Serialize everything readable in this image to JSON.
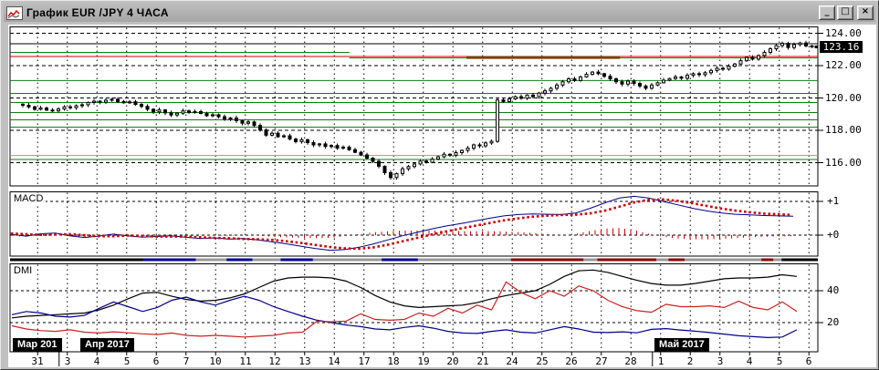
{
  "window": {
    "title": "График EUR /JPY  4 ЧАСА",
    "controls": {
      "minimize": "_",
      "maximize": "□",
      "close": "×"
    }
  },
  "colors": {
    "green_level": "#0f7d0f",
    "red_level": "#cc0000",
    "brown_level": "#7a4010",
    "macd_line": "#00008b",
    "signal_line": "#cc0000",
    "adx_line": "#000000",
    "plus_di": "#00008b",
    "minus_di": "#cc2222",
    "badge_bg": "#000000",
    "pink_level": "#dd8888"
  },
  "panels": {
    "price": {
      "axis": [
        {
          "label": "124.00",
          "value": 124
        },
        {
          "label": "122.00",
          "value": 122
        },
        {
          "label": "120.00",
          "value": 120
        },
        {
          "label": "118.00",
          "value": 118
        },
        {
          "label": "116.00",
          "value": 116
        }
      ],
      "current_price_label": "123.16",
      "current_price": 123.16
    },
    "macd": {
      "title": "MACD",
      "axis": [
        {
          "label": "+1",
          "value": 1
        },
        {
          "label": "+0",
          "value": 0
        }
      ]
    },
    "dmi": {
      "title": "DMI",
      "axis": [
        {
          "label": "40",
          "value": 40
        },
        {
          "label": "20",
          "value": 20
        }
      ]
    }
  },
  "x_axis": {
    "day_labels": [
      "31",
      "3",
      "4",
      "5",
      "6",
      "7",
      "10",
      "11",
      "12",
      "13",
      "14",
      "17",
      "18",
      "19",
      "20",
      "21",
      "24",
      "25",
      "26",
      "27",
      "28",
      "1",
      "2",
      "3",
      "4",
      "5",
      "6"
    ],
    "months": [
      {
        "text": "Мар 201"
      },
      {
        "text": "Апр 2017"
      },
      {
        "text": "Май 2017"
      }
    ]
  },
  "chart_data": [
    {
      "type": "candlestick",
      "title": "EUR/JPY 4-hour price",
      "ylim": [
        114.6,
        124.4
      ],
      "gridlines": [
        124,
        122,
        120,
        118,
        116
      ],
      "bars_per_day": 5,
      "closes": [
        119.55,
        119.45,
        119.3,
        119.38,
        119.25,
        119.2,
        119.32,
        119.45,
        119.4,
        119.52,
        119.58,
        119.72,
        119.8,
        119.74,
        119.86,
        119.92,
        119.78,
        119.7,
        119.76,
        119.6,
        119.48,
        119.3,
        119.14,
        119.26,
        119.08,
        118.95,
        119.06,
        119.2,
        119.1,
        119.16,
        119.04,
        118.9,
        118.96,
        118.84,
        118.7,
        118.76,
        118.6,
        118.44,
        118.52,
        118.3,
        118.02,
        117.7,
        117.82,
        117.6,
        117.66,
        117.46,
        117.3,
        117.42,
        117.24,
        117.1,
        117.16,
        117.0,
        117.06,
        116.9,
        116.96,
        116.8,
        116.64,
        116.48,
        116.28,
        116.08,
        115.78,
        115.38,
        115.08,
        115.32,
        115.62,
        115.76,
        115.92,
        116.1,
        116.02,
        116.22,
        116.36,
        116.52,
        116.46,
        116.62,
        116.76,
        116.9,
        117.1,
        117.04,
        117.22,
        117.32,
        119.88,
        119.78,
        119.94,
        120.08,
        119.98,
        120.18,
        120.08,
        120.3,
        120.44,
        120.6,
        120.8,
        121.0,
        121.18,
        121.08,
        121.3,
        121.46,
        121.6,
        121.5,
        121.34,
        121.18,
        121.0,
        120.86,
        121.04,
        120.9,
        120.74,
        120.6,
        120.8,
        120.94,
        121.1,
        121.2,
        121.3,
        121.22,
        121.4,
        121.5,
        121.44,
        121.56,
        121.7,
        121.84,
        121.78,
        121.96,
        122.1,
        122.3,
        122.5,
        122.4,
        122.62,
        122.82,
        123.04,
        123.24,
        123.38,
        123.12,
        123.3,
        123.4,
        123.22,
        123.16
      ],
      "levels": [
        {
          "price": 123.35,
          "color": "#000000",
          "width": 1,
          "from": 0,
          "to": 1
        },
        {
          "price": 122.82,
          "color": "#0f7d0f",
          "width": 1,
          "from": 0,
          "to": 0.42
        },
        {
          "price": 122.48,
          "color": "#0f7d0f",
          "width": 1,
          "from": 0.42,
          "to": 1
        },
        {
          "price": 122.56,
          "color": "#cc0000",
          "width": 1,
          "from": 0,
          "to": 1
        },
        {
          "price": 122.5,
          "color": "#7a4010",
          "width": 3,
          "from": 0.565,
          "to": 0.755
        },
        {
          "price": 121.08,
          "color": "#0f7d0f",
          "width": 1,
          "from": 0,
          "to": 1
        },
        {
          "price": 120.28,
          "color": "#0f7d0f",
          "width": 1,
          "from": 0,
          "to": 1
        },
        {
          "price": 119.72,
          "color": "#0f7d0f",
          "width": 1,
          "from": 0,
          "to": 1
        },
        {
          "price": 119.1,
          "color": "#0f7d0f",
          "width": 1,
          "from": 0,
          "to": 1
        },
        {
          "price": 118.65,
          "color": "#0f7d0f",
          "width": 1,
          "from": 0,
          "to": 1
        },
        {
          "price": 118.2,
          "color": "#0f7d0f",
          "width": 1,
          "from": 0,
          "to": 1
        },
        {
          "price": 116.45,
          "color": "#dd8888",
          "width": 1,
          "from": 0,
          "to": 1
        },
        {
          "price": 116.2,
          "color": "#0f7d0f",
          "width": 1,
          "from": 0,
          "to": 1
        }
      ]
    },
    {
      "type": "line",
      "title": "MACD",
      "ylim": [
        -0.62,
        1.3
      ],
      "gridlines": [
        1,
        0
      ],
      "series": [
        {
          "name": "macd",
          "color": "#00008b",
          "style": "solid",
          "values": [
            0.02,
            -0.03,
            0.04,
            0.06,
            -0.02,
            -0.07,
            -0.03,
            0.03,
            -0.02,
            -0.06,
            -0.04,
            -0.02,
            -0.06,
            -0.1,
            -0.08,
            -0.12,
            -0.1,
            -0.14,
            -0.2,
            -0.26,
            -0.33,
            -0.4,
            -0.45,
            -0.43,
            -0.36,
            -0.26,
            -0.14,
            -0.02,
            0.08,
            0.18,
            0.27,
            0.34,
            0.42,
            0.5,
            0.57,
            0.61,
            0.63,
            0.62,
            0.61,
            0.66,
            0.8,
            0.96,
            1.1,
            1.15,
            1.1,
            1.0,
            0.9,
            0.8,
            0.72,
            0.66,
            0.62,
            0.6,
            0.58,
            0.57,
            0.56
          ]
        },
        {
          "name": "signal",
          "color": "#cc0000",
          "style": "dotted",
          "values": [
            0.05,
            0.03,
            0.01,
            0.02,
            0.03,
            0.0,
            -0.03,
            -0.03,
            -0.01,
            -0.02,
            -0.04,
            -0.04,
            -0.04,
            -0.06,
            -0.08,
            -0.09,
            -0.11,
            -0.12,
            -0.14,
            -0.18,
            -0.23,
            -0.29,
            -0.35,
            -0.39,
            -0.4,
            -0.36,
            -0.28,
            -0.18,
            -0.08,
            0.02,
            0.11,
            0.2,
            0.28,
            0.36,
            0.44,
            0.5,
            0.55,
            0.58,
            0.6,
            0.61,
            0.65,
            0.73,
            0.85,
            0.97,
            1.05,
            1.06,
            1.02,
            0.95,
            0.87,
            0.79,
            0.73,
            0.68,
            0.64,
            0.62,
            0.6
          ]
        }
      ],
      "histogram": "macd-minus-signal"
    },
    {
      "type": "line",
      "title": "DMI",
      "ylim": [
        1.7,
        57.1
      ],
      "gridlines": [
        40,
        20
      ],
      "series": [
        {
          "name": "ADX",
          "color": "#000000",
          "style": "solid",
          "values": [
            23,
            24,
            24.5,
            25,
            25.5,
            26,
            28,
            31,
            35,
            38.5,
            39,
            36.5,
            34.5,
            33.5,
            34,
            35.5,
            38,
            42,
            46,
            48,
            48.5,
            48.5,
            48,
            46,
            42,
            37,
            33,
            30.5,
            29.5,
            30,
            30.5,
            31,
            32.5,
            35,
            37,
            38.5,
            40,
            44,
            49,
            52.5,
            53,
            51.5,
            49,
            46.5,
            44.5,
            43.5,
            43.5,
            44.5,
            46,
            47.5,
            48,
            48,
            48.5,
            50,
            49
          ]
        },
        {
          "name": "+DI",
          "color": "#00008b",
          "style": "solid",
          "values": [
            25,
            27,
            26,
            24,
            23.5,
            24.5,
            29,
            33,
            30,
            27,
            29.5,
            34,
            36,
            33,
            31,
            34,
            36.5,
            34,
            30,
            27,
            24,
            21.5,
            20,
            18.5,
            17.5,
            16,
            15.5,
            17,
            18,
            16.5,
            14.5,
            13.5,
            13.2,
            14.5,
            15.5,
            14,
            13.5,
            15.5,
            17.5,
            16,
            14,
            13.8,
            14.2,
            13.6,
            15.8,
            16.2,
            15.4,
            14.6,
            13.8,
            12.8,
            11.8,
            11.2,
            10.6,
            11,
            15.5
          ]
        },
        {
          "name": "-DI",
          "color": "#cc2222",
          "style": "solid",
          "values": [
            18,
            16,
            15,
            14.5,
            15.5,
            14,
            13.5,
            14.2,
            13.6,
            13,
            12.5,
            13.5,
            12,
            11.5,
            12,
            11.5,
            11,
            11.5,
            12,
            13.5,
            14,
            21,
            20.5,
            21,
            25.5,
            22,
            21.5,
            22,
            26,
            24,
            29,
            26,
            31,
            28,
            45.5,
            39,
            35,
            40,
            36.5,
            43,
            40,
            34,
            30,
            27.5,
            26.5,
            31.5,
            30,
            30,
            30.5,
            29.5,
            33.5,
            29.5,
            28,
            33,
            27
          ]
        }
      ]
    }
  ],
  "ribbon": {
    "segments": [
      {
        "color": "#000000",
        "from": 0,
        "to": 0.165
      },
      {
        "color": "#00009a",
        "from": 0.165,
        "to": 0.23
      },
      {
        "color": "#9a9a9a",
        "from": 0.23,
        "to": 0.268
      },
      {
        "color": "#00009a",
        "from": 0.268,
        "to": 0.3
      },
      {
        "color": "#9a9a9a",
        "from": 0.3,
        "to": 0.335
      },
      {
        "color": "#00009a",
        "from": 0.335,
        "to": 0.375
      },
      {
        "color": "#9a9a9a",
        "from": 0.375,
        "to": 0.46
      },
      {
        "color": "#00009a",
        "from": 0.46,
        "to": 0.505
      },
      {
        "color": "#9a9a9a",
        "from": 0.505,
        "to": 0.62
      },
      {
        "color": "#8b0000",
        "from": 0.62,
        "to": 0.71
      },
      {
        "color": "#9a9a9a",
        "from": 0.71,
        "to": 0.727
      },
      {
        "color": "#8b0000",
        "from": 0.727,
        "to": 0.8
      },
      {
        "color": "#9a9a9a",
        "from": 0.8,
        "to": 0.815
      },
      {
        "color": "#8b0000",
        "from": 0.815,
        "to": 0.835
      },
      {
        "color": "#9a9a9a",
        "from": 0.835,
        "to": 0.93
      },
      {
        "color": "#8b0000",
        "from": 0.93,
        "to": 0.945
      },
      {
        "color": "#9a9a9a",
        "from": 0.945,
        "to": 0.955
      },
      {
        "color": "#000000",
        "from": 0.955,
        "to": 1
      }
    ]
  }
}
